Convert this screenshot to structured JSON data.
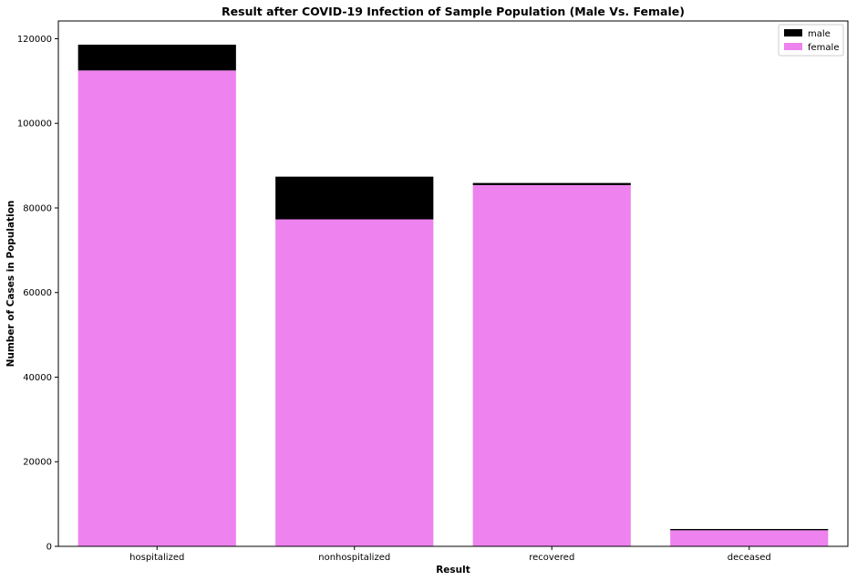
{
  "chart_data": {
    "type": "bar",
    "stacked": true,
    "title": "Result after COVID-19 Infection of Sample Population (Male Vs. Female)",
    "xlabel": "Result",
    "ylabel": "Number of Cases in Population",
    "categories": [
      "hospitalized",
      "nonhospitalized",
      "recovered",
      "deceased"
    ],
    "series": [
      {
        "name": "female",
        "color": "#ee82ee",
        "values": [
          112500,
          77300,
          85400,
          3800
        ]
      },
      {
        "name": "male",
        "color": "#000000",
        "values": [
          6100,
          10100,
          500,
          300
        ]
      }
    ],
    "stack_totals": [
      118600,
      87400,
      85900,
      4100
    ],
    "ylim": [
      0,
      124200
    ],
    "yticks": [
      0,
      20000,
      40000,
      60000,
      80000,
      100000,
      120000
    ],
    "ytick_labels": [
      "0",
      "20000",
      "40000",
      "60000",
      "80000",
      "100000",
      "120000"
    ],
    "grid": false,
    "legend": {
      "placement": "top-right",
      "entries": [
        {
          "label": "male",
          "color": "#000000"
        },
        {
          "label": "female",
          "color": "#ee82ee"
        }
      ]
    }
  }
}
